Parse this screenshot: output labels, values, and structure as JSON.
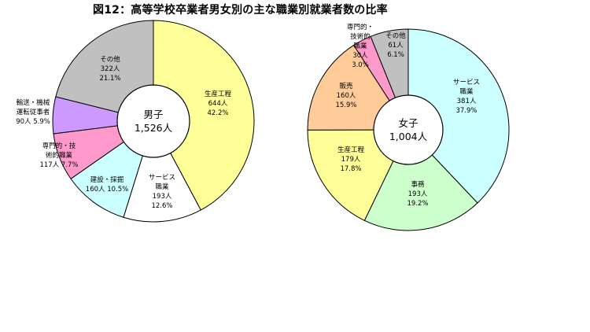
{
  "title": "図12：高等学校卒業者男女別の主な職業別就業者数の比率",
  "chart_data": [
    {
      "type": "pie",
      "center_label": [
        "男子",
        "1,526人"
      ],
      "start_angle_deg": 0,
      "slices": [
        {
          "label": "生産工程",
          "count": "644人",
          "pct": "42.2%",
          "value": 42.2,
          "color": "#ffff99"
        },
        {
          "label": "サービス職業",
          "count": "193人",
          "pct": "12.6%",
          "value": 12.6,
          "color": "#ffffff"
        },
        {
          "label": "建設・採掘",
          "count": "160人",
          "pct": "10.5%",
          "value": 10.5,
          "color": "#ccffff"
        },
        {
          "label": "専門的・技術的職業",
          "count": "117人",
          "pct": "7.7%",
          "value": 7.7,
          "color": "#ff99cc"
        },
        {
          "label": "輸送・機械運転従事者",
          "count": "90人",
          "pct": "5.9%",
          "value": 5.9,
          "color": "#cc99ff"
        },
        {
          "label": "その他",
          "count": "322人",
          "pct": "21.1%",
          "value": 21.1,
          "color": "#c0c0c0"
        }
      ]
    },
    {
      "type": "pie",
      "center_label": [
        "女子",
        "1,004人"
      ],
      "start_angle_deg": 0,
      "slices": [
        {
          "label": "サービス職業",
          "count": "381人",
          "pct": "37.9%",
          "value": 37.9,
          "color": "#ccffff"
        },
        {
          "label": "事務",
          "count": "193人",
          "pct": "19.2%",
          "value": 19.2,
          "color": "#ccffcc"
        },
        {
          "label": "生産工程",
          "count": "179人",
          "pct": "17.8%",
          "value": 17.8,
          "color": "#ffff99"
        },
        {
          "label": "販売",
          "count": "160人",
          "pct": "15.9%",
          "value": 15.9,
          "color": "#ffcc99"
        },
        {
          "label": "専門的・技術的職業",
          "count": "30人",
          "pct": "3.0%",
          "value": 3.0,
          "color": "#ff99cc"
        },
        {
          "label": "その他",
          "count": "61人",
          "pct": "6.1%",
          "value": 6.1,
          "color": "#c0c0c0"
        }
      ]
    }
  ]
}
